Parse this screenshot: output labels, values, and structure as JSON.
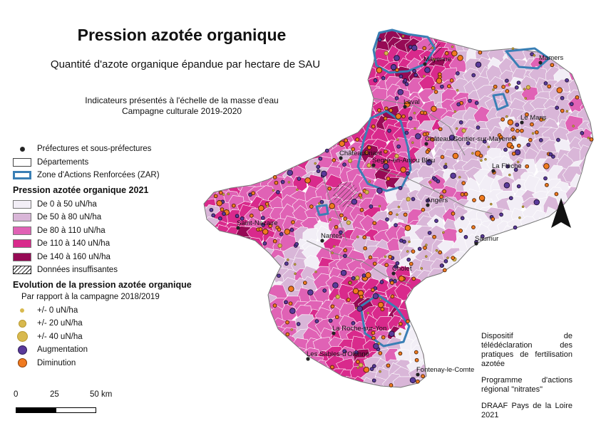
{
  "title": "Pression azotée organique",
  "subtitle": "Quantité d'azote organique épandue par hectare de SAU",
  "info": {
    "line1": "Indicateurs présentés à l'échelle de la masse d'eau",
    "line2": "Campagne culturale 2019-2020"
  },
  "legend": {
    "symbols": [
      {
        "label": "Préfectures et sous-préfectures",
        "icon": "prefecture-dot"
      },
      {
        "label": "Départements",
        "icon": "department-box"
      },
      {
        "label": "Zone d'Actions Renforcées (ZAR)",
        "icon": "zar-box",
        "color": "#3a7fb5"
      }
    ],
    "pressure_title": "Pression azotée organique 2021",
    "pressure_classes": [
      {
        "label": "De 0 à 50 uN/ha",
        "color": "#f2eef6"
      },
      {
        "label": "De 50 à 80 uN/ha",
        "color": "#d9b6d8"
      },
      {
        "label": "De 80 à 110 uN/ha",
        "color": "#e062b5"
      },
      {
        "label": "De 110 à 140 uN/ha",
        "color": "#d92a8c"
      },
      {
        "label": "De 140 à 160 uN/ha",
        "color": "#960a55"
      }
    ],
    "insufficient_label": "Données insuffisantes",
    "evolution_title": "Evolution de la pression azotée organique",
    "evolution_subtitle": "Par rapport à la campagne 2018/2019",
    "evolution_sizes": [
      {
        "label": "+/- 0 uN/ha",
        "color": "#d8b94e"
      },
      {
        "label": "+/- 20 uN/ha",
        "color": "#d8b94e"
      },
      {
        "label": "+/- 40 uN/ha",
        "color": "#d8b94e"
      }
    ],
    "evolution_colors": [
      {
        "label": "Augmentation",
        "color": "#5a3a9a"
      },
      {
        "label": "Diminution",
        "color": "#f07a20"
      }
    ]
  },
  "credits": {
    "p1": "Dispositif de télédéclaration des pratiques de fertilisation azotée",
    "p2": "Programme d'actions régional \"nitrates\"",
    "p3": "DRAAF Pays de la Loire 2021"
  },
  "scale": {
    "t0": "0",
    "t1": "25",
    "t2": "50 km"
  },
  "cities": [
    "Mayenne",
    "Mamers",
    "Laval",
    "Le Mans",
    "Château-Gontier-sur-Mayenne",
    "Châteaubriant",
    "Segré-en-Anjou Bleu",
    "La Flèche",
    "Angers",
    "Saint-Nazaire",
    "Nantes",
    "Saumur",
    "Cholet",
    "La Roche-sur-Yon",
    "Les Sables-d'Olonne",
    "Fontenay-le-Comte"
  ],
  "north_arrow": "north-arrow-icon"
}
